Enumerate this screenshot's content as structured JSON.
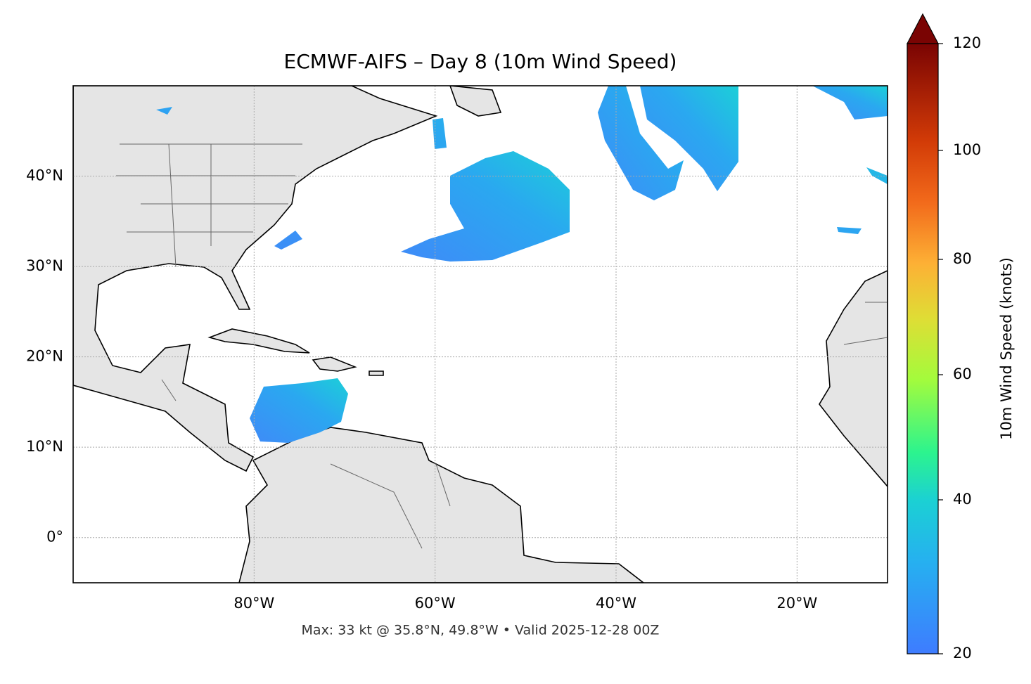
{
  "map": {
    "title": "ECMWF-AIFS – Day 8 (10m Wind Speed)",
    "footer": "Max: 33 kt @ 35.8°N, 49.8°W • Valid 2025-12-28 00Z",
    "xlim": [
      -100,
      -10
    ],
    "ylim": [
      -5,
      50
    ],
    "xticks": [
      {
        "value": -80,
        "label": "80°W"
      },
      {
        "value": -60,
        "label": "60°W"
      },
      {
        "value": -40,
        "label": "40°W"
      },
      {
        "value": -20,
        "label": "20°W"
      }
    ],
    "yticks": [
      {
        "value": 0,
        "label": "0°"
      },
      {
        "value": 10,
        "label": "10°N"
      },
      {
        "value": 20,
        "label": "20°N"
      },
      {
        "value": 30,
        "label": "30°N"
      },
      {
        "value": 40,
        "label": "40°N"
      }
    ],
    "grid": true,
    "colorbar": {
      "label": "10m Wind Speed (knots)",
      "ticks": [
        20,
        40,
        60,
        80,
        100,
        120
      ]
    }
  }
}
